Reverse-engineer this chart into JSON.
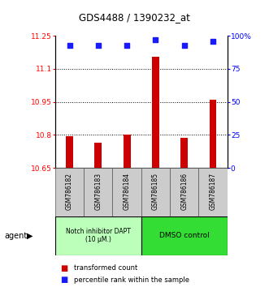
{
  "title": "GDS4488 / 1390232_at",
  "samples": [
    "GSM786182",
    "GSM786183",
    "GSM786184",
    "GSM786185",
    "GSM786186",
    "GSM786187"
  ],
  "red_values": [
    10.795,
    10.765,
    10.8,
    11.155,
    10.785,
    10.96
  ],
  "blue_values": [
    93,
    93,
    93,
    97,
    93,
    96
  ],
  "ylim_left": [
    10.65,
    11.25
  ],
  "ylim_right": [
    0,
    100
  ],
  "yticks_left": [
    10.65,
    10.8,
    10.95,
    11.1,
    11.25
  ],
  "ytick_labels_left": [
    "10.65",
    "10.8",
    "10.95",
    "11.1",
    "11.25"
  ],
  "yticks_right": [
    0,
    25,
    50,
    75,
    100
  ],
  "ytick_labels_right": [
    "0",
    "25",
    "50",
    "75",
    "100%"
  ],
  "bar_color": "#cc0000",
  "dot_color": "#1a1aff",
  "group1_label": "Notch inhibitor DAPT\n(10 μM.)",
  "group2_label": "DMSO control",
  "group1_indices": [
    0,
    1,
    2
  ],
  "group2_indices": [
    3,
    4,
    5
  ],
  "group1_color": "#bbffbb",
  "group2_color": "#33dd33",
  "agent_label": "agent",
  "legend_red": "transformed count",
  "legend_blue": "percentile rank within the sample",
  "grid_dotted_values": [
    10.8,
    10.95,
    11.1
  ],
  "bar_width": 0.25
}
